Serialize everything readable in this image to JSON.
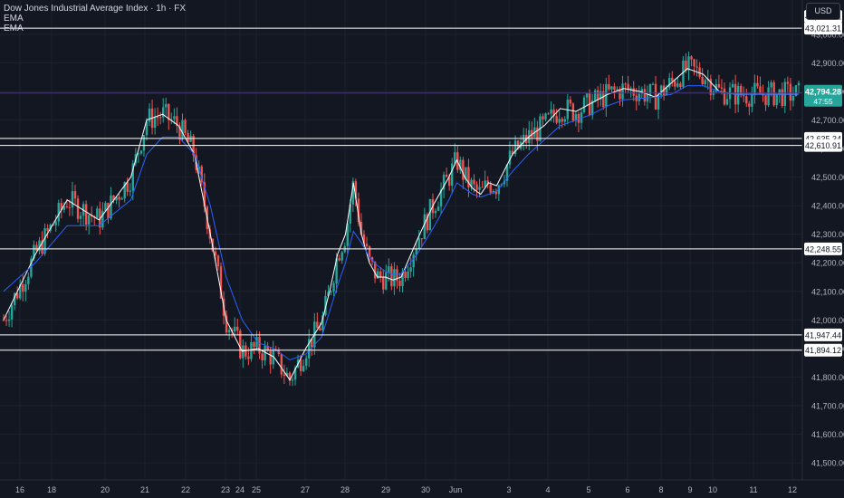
{
  "legend": {
    "title": "Dow Jones Industrial Average Index · 1h · FX",
    "ema1": "EMA",
    "ema2": "EMA"
  },
  "currency": "USD",
  "colors": {
    "background": "#131722",
    "up": "#26a69a",
    "down": "#ef5350",
    "ema_fast": "#ffffff",
    "ema_slow": "#2962ff",
    "level_line": "#ffffff",
    "price_line": "#4a3a7a",
    "price_badge": "#26a69a",
    "axis_text": "#b2b5be",
    "grid": "#1e222d"
  },
  "chart_data": {
    "type": "line",
    "title": "Dow Jones Industrial Average Index · 1h · FX",
    "xlabel": "",
    "ylabel": "",
    "ylim": [
      41440,
      43120
    ],
    "grid": true,
    "yticks": [
      "41,500.00",
      "41,600.00",
      "41,700.00",
      "41,800.00",
      "41,900.00",
      "42,000.00",
      "42,100.00",
      "42,200.00",
      "42,300.00",
      "42,400.00",
      "42,500.00",
      "42,600.00",
      "42,700.00",
      "42,800.00",
      "42,900.00",
      "43,000.00"
    ],
    "xticks": [
      "16",
      "18",
      "20",
      "21",
      "22",
      "23",
      "24",
      "25",
      "27",
      "28",
      "29",
      "30",
      "Jun",
      "3",
      "4",
      "5",
      "6",
      "8",
      "9",
      "10",
      "11",
      "12"
    ],
    "current_price": {
      "value": "42,794.28",
      "countdown": "47:55"
    },
    "levels": [
      {
        "value": 43021.31,
        "label": "43,021.31"
      },
      {
        "value": 42635.34,
        "label": "42,635.34"
      },
      {
        "value": 42610.91,
        "label": "42,610.91"
      },
      {
        "value": 42248.55,
        "label": "42,248.55"
      },
      {
        "value": 41947.44,
        "label": "41,947.44"
      },
      {
        "value": 41894.12,
        "label": "41,894.12"
      }
    ],
    "top_label": "43,021.31",
    "series": [
      {
        "name": "EMA",
        "role": "fast",
        "x": [
          0,
          2,
          4,
          6,
          8,
          9,
          10,
          11,
          12,
          13,
          14,
          15,
          16,
          17,
          18,
          19,
          20,
          20.5,
          21,
          21.5,
          22,
          22.5,
          23,
          23.5,
          24,
          24.5,
          25,
          26,
          27,
          28,
          28.5,
          29,
          29.5,
          30,
          30.5,
          31,
          32,
          33,
          34,
          35,
          36,
          37,
          38,
          39,
          40,
          41,
          42,
          43,
          44,
          45,
          46,
          47,
          48,
          49,
          50
        ],
        "y": [
          42000,
          42230,
          42420,
          42350,
          42500,
          42700,
          42720,
          42680,
          42580,
          42300,
          42000,
          41890,
          41900,
          41870,
          41790,
          41900,
          41990,
          42100,
          42230,
          42300,
          42480,
          42300,
          42200,
          42150,
          42150,
          42140,
          42150,
          42280,
          42400,
          42500,
          42560,
          42500,
          42460,
          42440,
          42480,
          42470,
          42580,
          42640,
          42680,
          42740,
          42730,
          42760,
          42790,
          42810,
          42800,
          42780,
          42830,
          42880,
          42860,
          42800,
          42790,
          42790,
          42790,
          42790,
          42790
        ]
      },
      {
        "name": "EMA",
        "role": "slow",
        "x": [
          0,
          2,
          4,
          6,
          8,
          9,
          10,
          11,
          12,
          13,
          14,
          15,
          16,
          17,
          18,
          19,
          20,
          20.5,
          21,
          21.5,
          22,
          22.5,
          23,
          23.5,
          24,
          24.5,
          25,
          26,
          27,
          28,
          28.5,
          29,
          29.5,
          30,
          30.5,
          31,
          32,
          33,
          34,
          35,
          36,
          37,
          38,
          39,
          40,
          41,
          42,
          43,
          44,
          45,
          46,
          47,
          48,
          49,
          50
        ],
        "y": [
          42100,
          42200,
          42330,
          42330,
          42420,
          42580,
          42640,
          42640,
          42580,
          42400,
          42150,
          42000,
          41920,
          41900,
          41860,
          41880,
          41940,
          42030,
          42120,
          42200,
          42310,
          42270,
          42220,
          42190,
          42170,
          42160,
          42160,
          42230,
          42320,
          42420,
          42480,
          42460,
          42440,
          42430,
          42440,
          42450,
          42520,
          42580,
          42630,
          42680,
          42700,
          42720,
          42750,
          42770,
          42775,
          42780,
          42790,
          42820,
          42820,
          42800,
          42790,
          42790,
          42790,
          42790,
          42790
        ]
      }
    ]
  }
}
